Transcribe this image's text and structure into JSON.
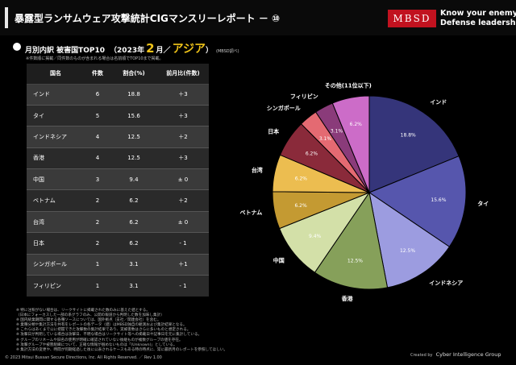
{
  "header": {
    "title": "暴露型ランサムウェア攻撃統計CIGマンスリーレポート － ⑩",
    "logo": "MBSD",
    "tagline_line1": "Know your enemy.",
    "tagline_line2": "Defense leadership."
  },
  "subtitle": {
    "main": "月別内訳 被害国TOP10",
    "year": "（2023年",
    "month": "2",
    "unit": "月／",
    "region": "アジア",
    "close": "）",
    "note": "(MBSD調べ)",
    "caption": "※件数順に掲載／同件数のものが含まれる場合は名前順でTOP10まで掲載。"
  },
  "table": {
    "headers": [
      "国名",
      "件数",
      "割合(%)",
      "前月比(件数)"
    ],
    "rows": [
      {
        "name": "インド",
        "count": "6",
        "pct": "18.8",
        "change": "＋3"
      },
      {
        "name": "タイ",
        "count": "5",
        "pct": "15.6",
        "change": "＋3"
      },
      {
        "name": "インドネシア",
        "count": "4",
        "pct": "12.5",
        "change": "＋2"
      },
      {
        "name": "香港",
        "count": "4",
        "pct": "12.5",
        "change": "＋3"
      },
      {
        "name": "中国",
        "count": "3",
        "pct": "9.4",
        "change": "± 0"
      },
      {
        "name": "ベトナム",
        "count": "2",
        "pct": "6.2",
        "change": "＋2"
      },
      {
        "name": "台湾",
        "count": "2",
        "pct": "6.2",
        "change": "± 0"
      },
      {
        "name": "日本",
        "count": "2",
        "pct": "6.2",
        "change": "- 1"
      },
      {
        "name": "シンガポール",
        "count": "1",
        "pct": "3.1",
        "change": "＋1"
      },
      {
        "name": "フィリピン",
        "count": "1",
        "pct": "3.1",
        "change": "- 1"
      }
    ]
  },
  "chart_data": {
    "type": "pie",
    "title": "",
    "slices": [
      {
        "label": "インド",
        "value": 18.8,
        "color": "#35357a"
      },
      {
        "label": "タイ",
        "value": 15.6,
        "color": "#5656ad"
      },
      {
        "label": "インドネシア",
        "value": 12.5,
        "color": "#9c9ce0"
      },
      {
        "label": "香港",
        "value": 12.5,
        "color": "#86a05a"
      },
      {
        "label": "中国",
        "value": 9.4,
        "color": "#d3e0a8"
      },
      {
        "label": "ベトナム",
        "value": 6.2,
        "color": "#c49a32"
      },
      {
        "label": "台湾",
        "value": 6.2,
        "color": "#ecbd50"
      },
      {
        "label": "日本",
        "value": 6.2,
        "color": "#8a2a3a"
      },
      {
        "label": "シンガポール",
        "value": 3.1,
        "color": "#e46a72"
      },
      {
        "label": "フィリピン",
        "value": 3.1,
        "color": "#8a3b7a"
      },
      {
        "label": "その他(11位以下)",
        "value": 6.2,
        "color": "#cc6cc8"
      }
    ]
  },
  "footnotes": [
    "※ 特に注釈がない場合は、リークサイトに掲載された数のみに基えた値とする。",
    "（日本にフォーカスした一部の系グラフのみ、公開の報道から判明した数を加味し集計）",
    "※ 国内統業期間に関する各種ソースについては、国外拠点（支社／関連会社）を含む。",
    "※ 業種分類や集計方法を共有をレポートの各データ（値）はMBSD独自の観測および集計結果となる。",
    "※ これらはあくまで公に把握できた攻撃数の集計結果であり、実被害数はさらに多いものと想定される。",
    "※ 攻撃日が判明している場合は攻撃日、不明な場合はリークサイト等への掲載日や記事日を元に集計している。",
    "※ グループのリネームや旧名の使用が明確に確認されていない後継ものが複数グループの値を存在。",
    "※ 攻撃グループや被害組織について、正確な情報が掴めないものは「(Unknown)」としている。",
    "※ 集計方法の変更や、時間が何期経過した後に公表されるケースもある時の時点に、常に最新月のレポートを参照してほしい。"
  ],
  "footer": {
    "copyright": "© 2023 Mitsui Bussan Secure Directions, Inc. All Rights Reserved. ／ Rev 1.00",
    "created_by": "Created by",
    "group": "Cyber Intelligence Group"
  }
}
